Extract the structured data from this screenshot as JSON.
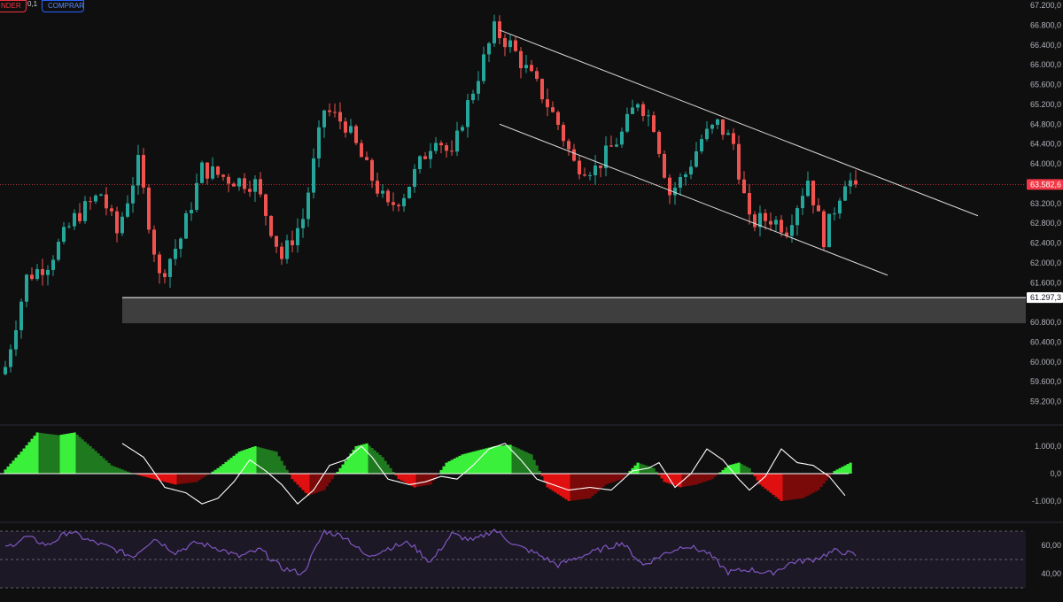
{
  "toolbar": {
    "sell_label": "NDER",
    "qty_label": "0,1",
    "buy_label": "COMPRAR"
  },
  "colors": {
    "background": "#0f0f0f",
    "up_candle": "#26a69a",
    "down_candle": "#ef5350",
    "trendline": "#d9d9d9",
    "support_line": "#ffffff",
    "support_zone": "#4a4a4a",
    "osc_bright_green": "#3bf03b",
    "osc_dark_green": "#1f7a1f",
    "osc_bright_red": "#e01010",
    "osc_dark_red": "#7a0a0a",
    "rsi_line": "#7e57c2",
    "rsi_band": "#2a2138",
    "last_price_tag": "#f23645"
  },
  "price_axis": {
    "ticks": [
      "67.200,0",
      "66.800,0",
      "66.400,0",
      "66.000,0",
      "65.600,0",
      "65.200,0",
      "64.800,0",
      "64.400,0",
      "64.000,0",
      "63.200,0",
      "62.800,0",
      "62.400,0",
      "62.000,0",
      "61.600,0",
      "60.800,0",
      "60.400,0",
      "60.000,0",
      "59.600,0",
      "59.200,0"
    ],
    "tick_values": [
      67200,
      66800,
      66400,
      66000,
      65600,
      65200,
      64800,
      64400,
      64000,
      63200,
      62800,
      62400,
      62000,
      61600,
      60800,
      60400,
      60000,
      59600,
      59200
    ],
    "last_price_label": "63.582,6",
    "last_price": 63582.6,
    "support_label": "61.297,3",
    "support_price": 61297.3
  },
  "osc_axis": {
    "ticks": [
      "1.000,0",
      "0,0",
      "-1.000,0"
    ],
    "tick_values": [
      1000,
      0,
      -1000
    ]
  },
  "rsi_axis": {
    "ticks": [
      "60,00",
      "40,00"
    ],
    "tick_values": [
      60,
      40
    ]
  },
  "chart_data": {
    "type": "candlestick",
    "candle_count": 160,
    "close_anchors": [
      [
        0,
        59900
      ],
      [
        4,
        61700
      ],
      [
        8,
        62000
      ],
      [
        13,
        62900
      ],
      [
        18,
        63400
      ],
      [
        21,
        62600
      ],
      [
        25,
        64000
      ],
      [
        29,
        61700
      ],
      [
        33,
        62500
      ],
      [
        37,
        63900
      ],
      [
        42,
        63700
      ],
      [
        47,
        63600
      ],
      [
        52,
        62100
      ],
      [
        56,
        62900
      ],
      [
        60,
        65100
      ],
      [
        64,
        64800
      ],
      [
        68,
        63900
      ],
      [
        72,
        63100
      ],
      [
        75,
        63400
      ],
      [
        81,
        64600
      ],
      [
        84,
        64100
      ],
      [
        86,
        64900
      ],
      [
        89,
        65800
      ],
      [
        92,
        66700
      ],
      [
        95,
        66400
      ],
      [
        98,
        65900
      ],
      [
        101,
        65400
      ],
      [
        104,
        64800
      ],
      [
        107,
        64000
      ],
      [
        111,
        63900
      ],
      [
        116,
        64600
      ],
      [
        119,
        65300
      ],
      [
        122,
        64800
      ],
      [
        125,
        63400
      ],
      [
        128,
        63800
      ],
      [
        131,
        64500
      ],
      [
        134,
        64800
      ],
      [
        137,
        64400
      ],
      [
        140,
        62800
      ],
      [
        144,
        62900
      ],
      [
        147,
        62700
      ],
      [
        151,
        63700
      ],
      [
        154,
        62500
      ],
      [
        158,
        63700
      ],
      [
        160,
        63582.6
      ]
    ],
    "trendlines": [
      {
        "from_index": 93,
        "from_price": 66700,
        "to_index": 183,
        "to_price": 62950
      },
      {
        "from_index": 93,
        "from_price": 64800,
        "to_index": 166,
        "to_price": 61750
      }
    ],
    "support_zone": {
      "from_index": 22,
      "top": 61297.3,
      "bottom": 60780
    },
    "oscillator_anchors": [
      [
        0,
        150
      ],
      [
        3,
        800
      ],
      [
        6,
        1500
      ],
      [
        10,
        1400
      ],
      [
        13,
        1500
      ],
      [
        16,
        1000
      ],
      [
        20,
        300
      ],
      [
        24,
        0
      ],
      [
        28,
        -200
      ],
      [
        32,
        -400
      ],
      [
        36,
        -300
      ],
      [
        40,
        200
      ],
      [
        44,
        800
      ],
      [
        47,
        1000
      ],
      [
        51,
        800
      ],
      [
        54,
        -200
      ],
      [
        57,
        -800
      ],
      [
        60,
        -600
      ],
      [
        63,
        200
      ],
      [
        66,
        1000
      ],
      [
        68,
        1100
      ],
      [
        71,
        600
      ],
      [
        74,
        -200
      ],
      [
        77,
        -500
      ],
      [
        80,
        -400
      ],
      [
        83,
        400
      ],
      [
        86,
        700
      ],
      [
        89,
        850
      ],
      [
        92,
        1000
      ],
      [
        95,
        1050
      ],
      [
        99,
        700
      ],
      [
        102,
        -500
      ],
      [
        106,
        -1000
      ],
      [
        110,
        -900
      ],
      [
        113,
        -400
      ],
      [
        116,
        -200
      ],
      [
        119,
        400
      ],
      [
        122,
        200
      ],
      [
        124,
        -300
      ],
      [
        127,
        -500
      ],
      [
        130,
        -400
      ],
      [
        133,
        -200
      ],
      [
        136,
        300
      ],
      [
        138,
        400
      ],
      [
        140,
        200
      ],
      [
        142,
        -400
      ],
      [
        146,
        -1000
      ],
      [
        150,
        -900
      ],
      [
        153,
        -600
      ],
      [
        156,
        100
      ],
      [
        159,
        400
      ]
    ],
    "signal_anchors": [
      [
        22,
        1100
      ],
      [
        26,
        600
      ],
      [
        30,
        -500
      ],
      [
        34,
        -700
      ],
      [
        37,
        -1100
      ],
      [
        40,
        -900
      ],
      [
        43,
        -300
      ],
      [
        46,
        500
      ],
      [
        49,
        100
      ],
      [
        52,
        -400
      ],
      [
        55,
        -1100
      ],
      [
        58,
        -600
      ],
      [
        61,
        300
      ],
      [
        64,
        500
      ],
      [
        67,
        1000
      ],
      [
        69,
        600
      ],
      [
        72,
        -200
      ],
      [
        76,
        -400
      ],
      [
        79,
        -300
      ],
      [
        82,
        -100
      ],
      [
        85,
        -200
      ],
      [
        88,
        300
      ],
      [
        91,
        900
      ],
      [
        94,
        1100
      ],
      [
        97,
        500
      ],
      [
        100,
        -200
      ],
      [
        103,
        -400
      ],
      [
        106,
        -600
      ],
      [
        110,
        -500
      ],
      [
        114,
        -600
      ],
      [
        118,
        100
      ],
      [
        121,
        200
      ],
      [
        123,
        400
      ],
      [
        126,
        -500
      ],
      [
        129,
        0
      ],
      [
        132,
        900
      ],
      [
        135,
        500
      ],
      [
        138,
        -200
      ],
      [
        140,
        -600
      ],
      [
        143,
        -100
      ],
      [
        146,
        900
      ],
      [
        149,
        400
      ],
      [
        152,
        300
      ],
      [
        155,
        -100
      ],
      [
        158,
        -800
      ]
    ],
    "rsi_anchors": [
      [
        0,
        58
      ],
      [
        4,
        66
      ],
      [
        8,
        60
      ],
      [
        12,
        70
      ],
      [
        16,
        63
      ],
      [
        20,
        58
      ],
      [
        24,
        52
      ],
      [
        28,
        65
      ],
      [
        32,
        55
      ],
      [
        36,
        62
      ],
      [
        40,
        58
      ],
      [
        44,
        52
      ],
      [
        48,
        57
      ],
      [
        52,
        44
      ],
      [
        56,
        40
      ],
      [
        60,
        70
      ],
      [
        64,
        66
      ],
      [
        68,
        52
      ],
      [
        72,
        58
      ],
      [
        76,
        62
      ],
      [
        80,
        48
      ],
      [
        84,
        68
      ],
      [
        88,
        63
      ],
      [
        92,
        71
      ],
      [
        96,
        60
      ],
      [
        100,
        54
      ],
      [
        104,
        46
      ],
      [
        108,
        52
      ],
      [
        112,
        57
      ],
      [
        116,
        62
      ],
      [
        120,
        46
      ],
      [
        124,
        54
      ],
      [
        128,
        60
      ],
      [
        132,
        55
      ],
      [
        136,
        41
      ],
      [
        140,
        43
      ],
      [
        144,
        40
      ],
      [
        148,
        48
      ],
      [
        152,
        50
      ],
      [
        156,
        56
      ],
      [
        158,
        55
      ],
      [
        160,
        53
      ]
    ]
  }
}
